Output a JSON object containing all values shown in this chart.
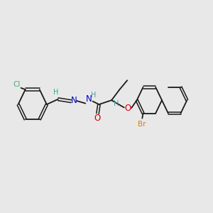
{
  "background_color": "#e8e8e8",
  "bond_color": "#1a1a1a",
  "cl_color": "#3cb371",
  "n_color": "#0000cc",
  "o_color": "#cc0000",
  "br_color": "#cc8800",
  "h_color": "#4a9a9a",
  "figsize": [
    3.0,
    3.0
  ],
  "dpi": 100,
  "xlim": [
    0,
    12
  ],
  "ylim": [
    0,
    10
  ]
}
